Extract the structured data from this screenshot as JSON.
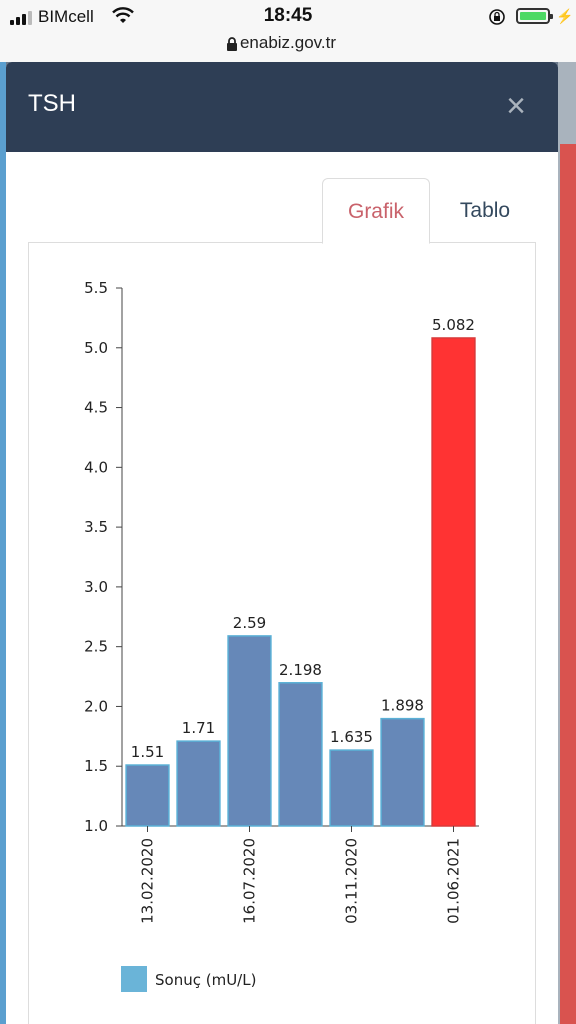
{
  "status_bar": {
    "carrier": "BIMcell",
    "time": "18:45",
    "url": "enabiz.gov.tr"
  },
  "modal": {
    "title": "TSH",
    "close_glyph": "×",
    "tabs": [
      {
        "label": "Grafik",
        "active": true
      },
      {
        "label": "Tablo",
        "active": false
      }
    ]
  },
  "colors": {
    "normal_bar": "#6688b8",
    "alert_bar": "#ff3333",
    "accent_tab": "#c9626b",
    "header_bg": "#2e3e55"
  },
  "chart_data": {
    "type": "bar",
    "categories": [
      "13.02.2020",
      "",
      "16.07.2020",
      "",
      "03.11.2020",
      "",
      "01.06.2021"
    ],
    "values": [
      1.51,
      1.71,
      2.59,
      2.198,
      1.635,
      1.898,
      5.082
    ],
    "value_labels": [
      "1.51",
      "1.71",
      "2.59",
      "2.198",
      "1.635",
      "1.898",
      "5.082"
    ],
    "highlight_index": 6,
    "y_ticks": [
      "1.0",
      "1.5",
      "2.0",
      "2.5",
      "3.0",
      "3.5",
      "4.0",
      "4.5",
      "5.0",
      "5.5"
    ],
    "ylim": [
      1.0,
      5.5
    ],
    "legend": "Sonuç (mU/L)",
    "legend_position": "bottom-left",
    "grid": false
  }
}
